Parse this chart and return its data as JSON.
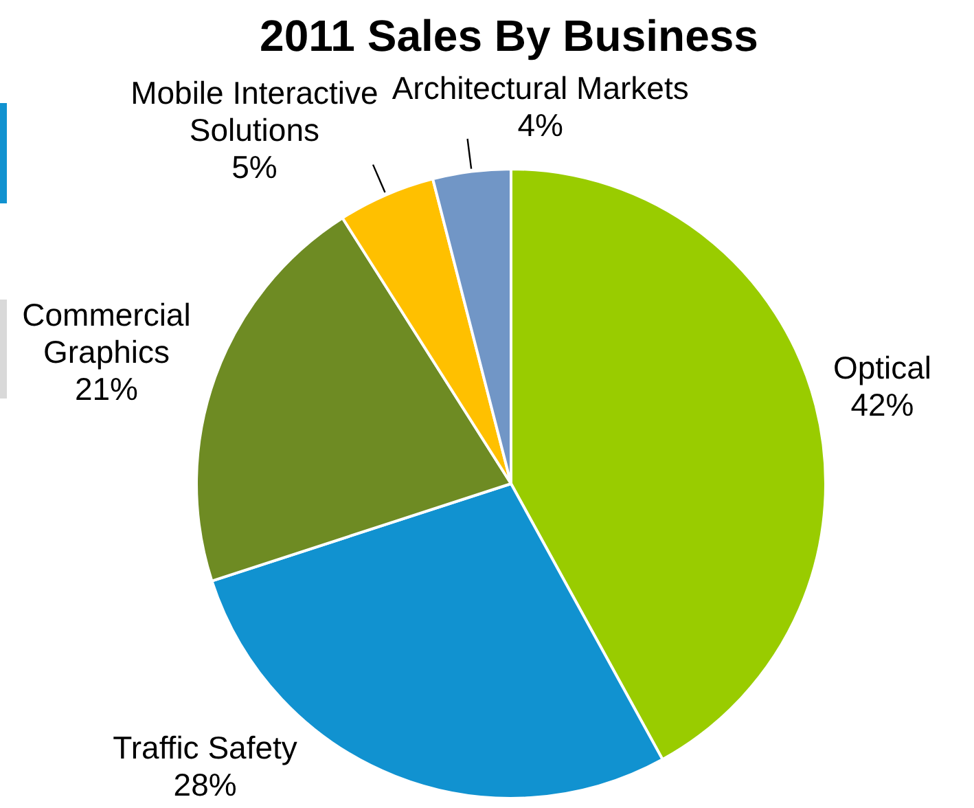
{
  "chart_data": {
    "type": "pie",
    "title": "2011 Sales By Business",
    "categories": [
      "Optical",
      "Traffic Safety",
      "Commercial\nGraphics",
      "Mobile Interactive\nSolutions",
      "Architectural Markets"
    ],
    "values": [
      42,
      28,
      21,
      5,
      4
    ],
    "value_labels": [
      "42%",
      "28%",
      "21%",
      "5%",
      "4%"
    ],
    "colors": [
      "#99cc00",
      "#1192d0",
      "#6e8b23",
      "#ffc000",
      "#7196c6"
    ],
    "legend": false
  }
}
